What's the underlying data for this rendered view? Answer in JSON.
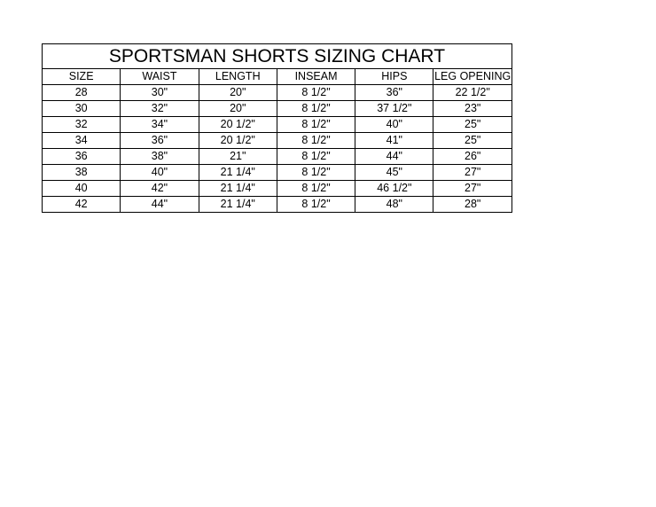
{
  "title": "SPORTSMAN SHORTS SIZING CHART",
  "table": {
    "header": [
      "SIZE",
      "WAIST",
      "LENGTH",
      "INSEAM",
      "HIPS",
      "LEG OPENING"
    ],
    "rows": [
      [
        "28",
        "30\"",
        "20\"",
        "8 1/2\"",
        "36\"",
        "22 1/2\""
      ],
      [
        "30",
        "32\"",
        "20\"",
        "8 1/2\"",
        "37 1/2\"",
        "23\""
      ],
      [
        "32",
        "34\"",
        "20 1/2\"",
        "8 1/2\"",
        "40\"",
        "25\""
      ],
      [
        "34",
        "36\"",
        "20 1/2\"",
        "8 1/2\"",
        "41\"",
        "25\""
      ],
      [
        "36",
        "38\"",
        "21\"",
        "8 1/2\"",
        "44\"",
        "26\""
      ],
      [
        "38",
        "40\"",
        "21 1/4\"",
        "8 1/2\"",
        "45\"",
        "27\""
      ],
      [
        "40",
        "42\"",
        "21 1/4\"",
        "8 1/2\"",
        "46 1/2\"",
        "27\""
      ],
      [
        "42",
        "44\"",
        "21 1/4\"",
        "8 1/2\"",
        "48\"",
        "28\""
      ]
    ]
  }
}
